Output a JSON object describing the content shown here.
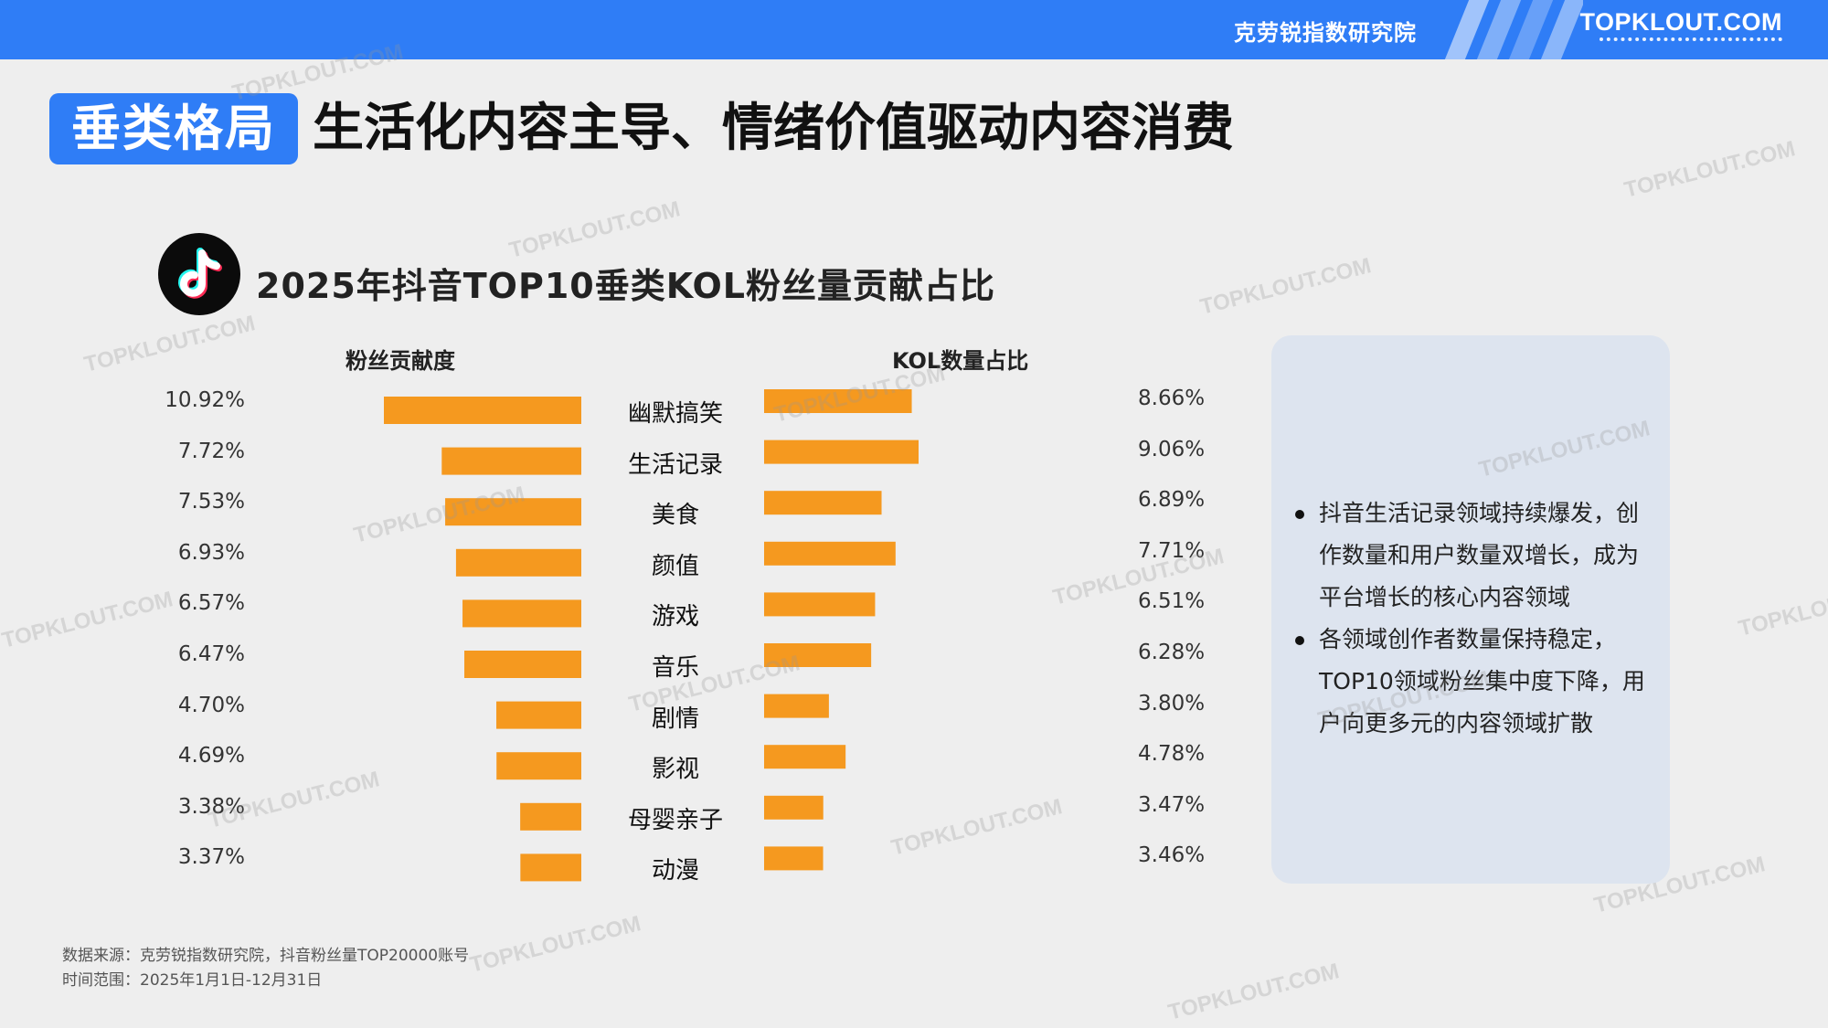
{
  "header": {
    "institute": "克劳锐指数研究院",
    "brand": "TOPKLOUT.COM"
  },
  "headline": {
    "tag": "垂类格局",
    "title": "生活化内容主导、情绪价值驱动内容消费"
  },
  "chart_data": {
    "type": "bar",
    "title": "2025年抖音TOP10垂类KOL粉丝量贡献占比",
    "categories": [
      "幽默搞笑",
      "生活记录",
      "美食",
      "颜值",
      "游戏",
      "音乐",
      "剧情",
      "影视",
      "母婴亲子",
      "动漫"
    ],
    "series": [
      {
        "name": "粉丝贡献度",
        "values": [
          10.92,
          7.72,
          7.53,
          6.93,
          6.57,
          6.47,
          4.7,
          4.69,
          3.38,
          3.37
        ],
        "labels": [
          "10.92%",
          "7.72%",
          "7.53%",
          "6.93%",
          "6.57%",
          "6.47%",
          "4.70%",
          "4.69%",
          "3.38%",
          "3.37%"
        ]
      },
      {
        "name": "KOL数量占比",
        "values": [
          8.66,
          9.06,
          6.89,
          7.71,
          6.51,
          6.28,
          3.8,
          4.78,
          3.47,
          3.46
        ],
        "labels": [
          "8.66%",
          "9.06%",
          "6.89%",
          "7.71%",
          "6.51%",
          "6.28%",
          "3.80%",
          "4.78%",
          "3.47%",
          "3.46%"
        ]
      }
    ],
    "bar_color": "#f5991f",
    "layout": "butterfly"
  },
  "insights": [
    "抖音生活记录领域持续爆发，创作数量和用户数量双增长，成为平台增长的核心内容领域",
    "各领域创作者数量保持稳定，TOP10领域粉丝集中度下降，用户向更多元的内容领域扩散"
  ],
  "source": {
    "line1": "数据来源：克劳锐指数研究院，抖音粉丝量TOP20000账号",
    "line2": "时间范围：2025年1月1日-12月31日"
  },
  "watermark": "TOPKLOUT.COM",
  "colors": {
    "accent": "#2f7df6",
    "bar": "#f5991f",
    "panel": "#dde4ef"
  }
}
